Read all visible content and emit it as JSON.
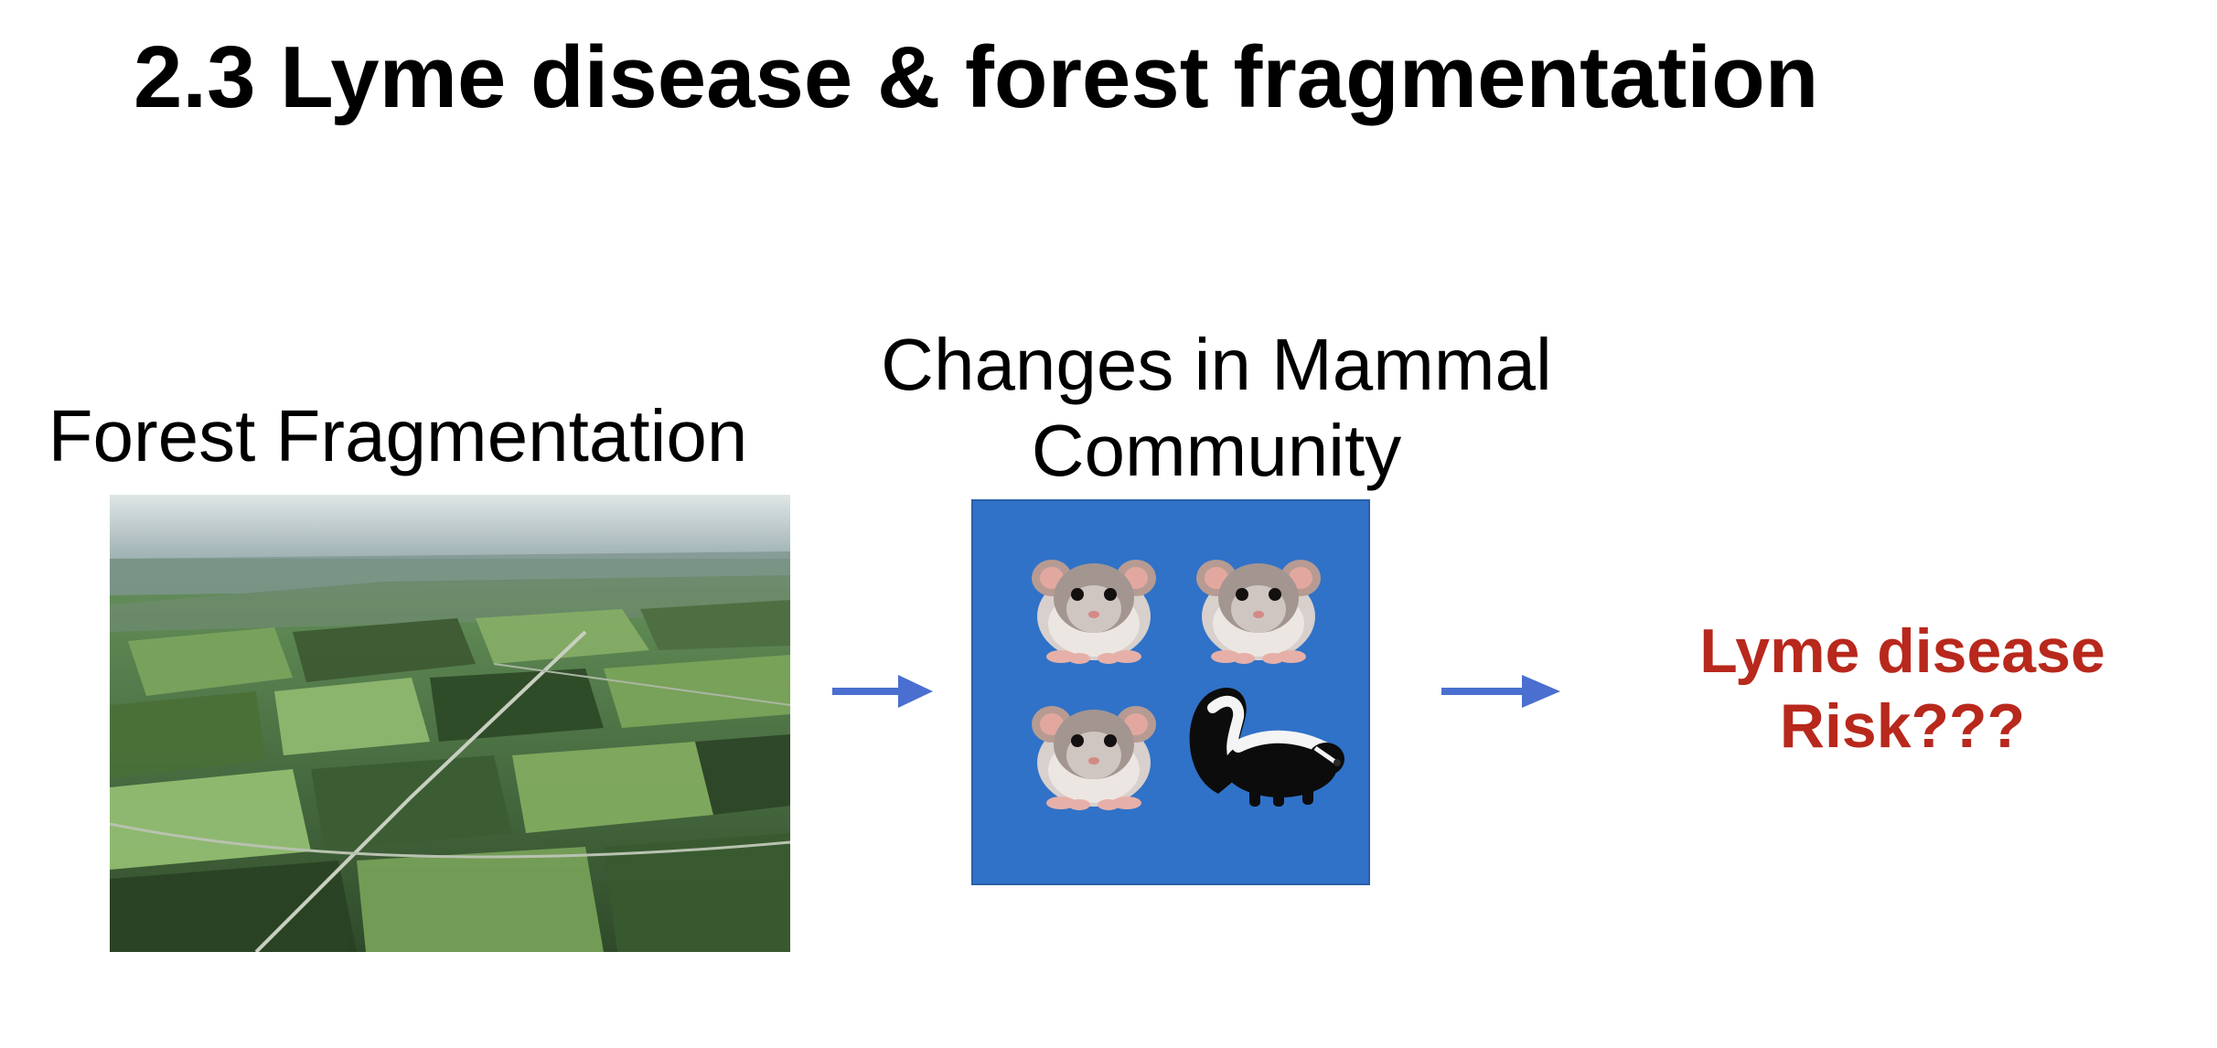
{
  "slide": {
    "title": "2.3 Lyme disease & forest fragmentation"
  },
  "steps": {
    "forest": {
      "caption": "Forest Fragmentation",
      "image_icon": "aerial-landscape-photo"
    },
    "mammals": {
      "caption_line1": "Changes in Mammal",
      "caption_line2": "Community",
      "panel_color": "#3072c8",
      "animals": [
        "mouse-icon",
        "mouse-icon",
        "mouse-icon",
        "skunk-icon"
      ]
    },
    "outcome": {
      "line1": "Lyme disease",
      "line2": "Risk???",
      "color": "#b8281c"
    }
  },
  "arrow_color": "#4a6fd0"
}
